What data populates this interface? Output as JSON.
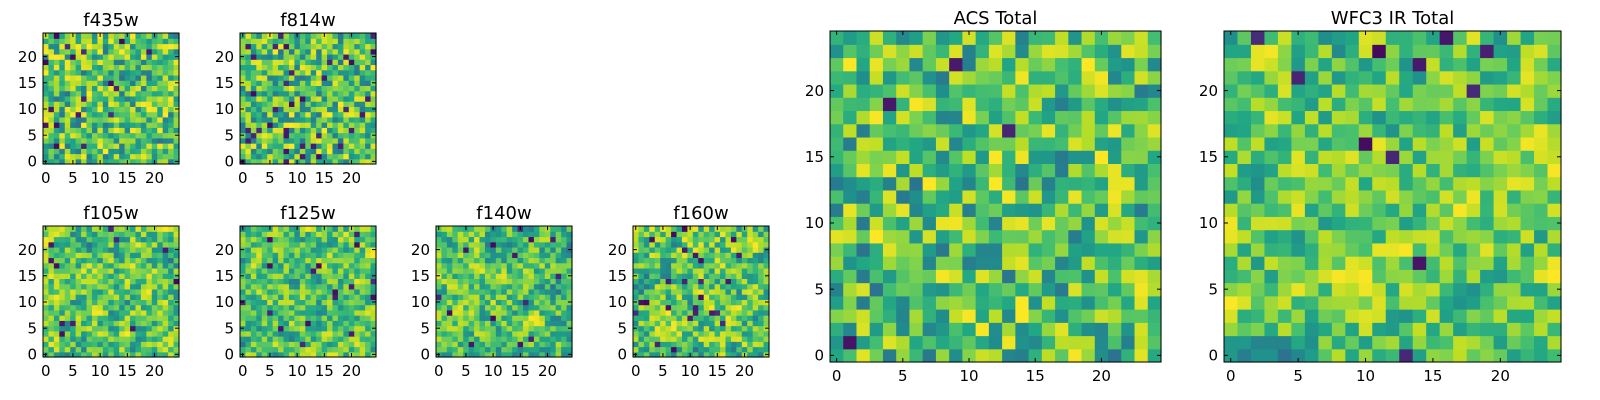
{
  "chart_data": [
    {
      "type": "heatmap",
      "title": "f435w",
      "colormap": "viridis",
      "size": [
        25,
        25
      ],
      "xlim": [
        -0.5,
        24.5
      ],
      "ylim": [
        -0.5,
        24.5
      ],
      "xticks": [
        0,
        5,
        10,
        15,
        20
      ],
      "yticks": [
        0,
        5,
        10,
        15,
        20
      ],
      "tick_labels_x": [
        "0",
        "5",
        "10",
        "15",
        "20"
      ],
      "tick_labels_y": [
        "0",
        "5",
        "10",
        "15",
        "20"
      ],
      "grid": false,
      "seed": 11,
      "texture": "speckle",
      "dark_fraction": 0.04
    },
    {
      "type": "heatmap",
      "title": "f814w",
      "colormap": "viridis",
      "size": [
        25,
        25
      ],
      "xlim": [
        -0.5,
        24.5
      ],
      "ylim": [
        -0.5,
        24.5
      ],
      "xticks": [
        0,
        5,
        10,
        15,
        20
      ],
      "yticks": [
        0,
        5,
        10,
        15,
        20
      ],
      "tick_labels_x": [
        "0",
        "5",
        "10",
        "15",
        "20"
      ],
      "tick_labels_y": [
        "0",
        "5",
        "10",
        "15",
        "20"
      ],
      "grid": false,
      "seed": 23,
      "texture": "speckle",
      "dark_fraction": 0.05
    },
    {
      "type": "heatmap",
      "title": "f105w",
      "colormap": "viridis",
      "size": [
        25,
        25
      ],
      "xlim": [
        -0.5,
        24.5
      ],
      "ylim": [
        -0.5,
        24.5
      ],
      "xticks": [
        0,
        5,
        10,
        15,
        20
      ],
      "yticks": [
        0,
        5,
        10,
        15,
        20
      ],
      "tick_labels_x": [
        "0",
        "5",
        "10",
        "15",
        "20"
      ],
      "tick_labels_y": [
        "0",
        "5",
        "10",
        "15",
        "20"
      ],
      "grid": false,
      "seed": 37,
      "texture": "smooth",
      "dark_fraction": 0.02
    },
    {
      "type": "heatmap",
      "title": "f125w",
      "colormap": "viridis",
      "size": [
        25,
        25
      ],
      "xlim": [
        -0.5,
        24.5
      ],
      "ylim": [
        -0.5,
        24.5
      ],
      "xticks": [
        0,
        5,
        10,
        15,
        20
      ],
      "yticks": [
        0,
        5,
        10,
        15,
        20
      ],
      "tick_labels_x": [
        "0",
        "5",
        "10",
        "15",
        "20"
      ],
      "tick_labels_y": [
        "0",
        "5",
        "10",
        "15",
        "20"
      ],
      "grid": false,
      "seed": 41,
      "texture": "smooth",
      "dark_fraction": 0.02
    },
    {
      "type": "heatmap",
      "title": "f140w",
      "colormap": "viridis",
      "size": [
        25,
        25
      ],
      "xlim": [
        -0.5,
        24.5
      ],
      "ylim": [
        -0.5,
        24.5
      ],
      "xticks": [
        0,
        5,
        10,
        15,
        20
      ],
      "yticks": [
        0,
        5,
        10,
        15,
        20
      ],
      "tick_labels_x": [
        "0",
        "5",
        "10",
        "15",
        "20"
      ],
      "tick_labels_y": [
        "0",
        "5",
        "10",
        "15",
        "20"
      ],
      "grid": false,
      "seed": 53,
      "texture": "smooth",
      "dark_fraction": 0.03
    },
    {
      "type": "heatmap",
      "title": "f160w",
      "colormap": "viridis",
      "size": [
        25,
        25
      ],
      "xlim": [
        -0.5,
        24.5
      ],
      "ylim": [
        -0.5,
        24.5
      ],
      "xticks": [
        0,
        5,
        10,
        15,
        20
      ],
      "yticks": [
        0,
        5,
        10,
        15,
        20
      ],
      "tick_labels_x": [
        "0",
        "5",
        "10",
        "15",
        "20"
      ],
      "tick_labels_y": [
        "0",
        "5",
        "10",
        "15",
        "20"
      ],
      "grid": false,
      "seed": 67,
      "texture": "smooth",
      "dark_fraction": 0.03
    },
    {
      "type": "heatmap",
      "title": "ACS Total",
      "colormap": "viridis",
      "size": [
        25,
        25
      ],
      "xlim": [
        -0.5,
        24.5
      ],
      "ylim": [
        -0.5,
        24.5
      ],
      "xticks": [
        0,
        5,
        10,
        15,
        20
      ],
      "yticks": [
        0,
        5,
        10,
        15,
        20
      ],
      "tick_labels_x": [
        "0",
        "5",
        "10",
        "15",
        "20"
      ],
      "tick_labels_y": [
        "0",
        "5",
        "10",
        "15",
        "20"
      ],
      "grid": false,
      "seed": 79,
      "texture": "speckle",
      "dark_fraction": 0.015
    },
    {
      "type": "heatmap",
      "title": "WFC3 IR Total",
      "colormap": "viridis",
      "size": [
        25,
        25
      ],
      "xlim": [
        -0.5,
        24.5
      ],
      "ylim": [
        -0.5,
        24.5
      ],
      "xticks": [
        0,
        5,
        10,
        15,
        20
      ],
      "yticks": [
        0,
        5,
        10,
        15,
        20
      ],
      "tick_labels_x": [
        "0",
        "5",
        "10",
        "15",
        "20"
      ],
      "tick_labels_y": [
        "0",
        "5",
        "10",
        "15",
        "20"
      ],
      "grid": false,
      "seed": 97,
      "texture": "smooth",
      "dark_fraction": 0.02
    }
  ]
}
